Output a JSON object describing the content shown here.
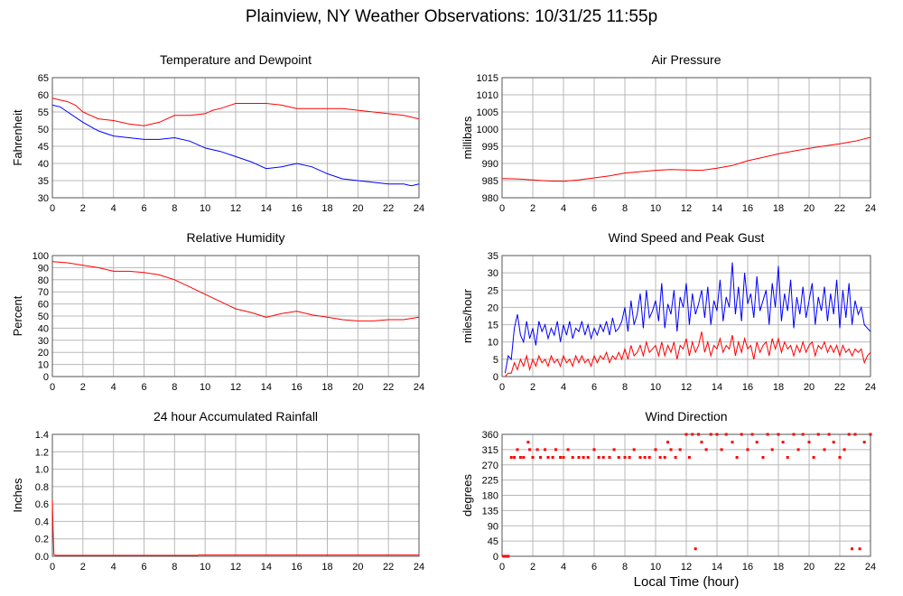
{
  "title": "Plainview, NY Weather Observations: 10/31/25 11:55p",
  "shared_xlabel": "Local Time (hour)",
  "chart_data": [
    {
      "id": "temp",
      "type": "line",
      "title": "Temperature and Dewpoint",
      "ylabel": "Fahrenheit",
      "xlim": [
        0,
        24
      ],
      "ylim": [
        30,
        65
      ],
      "xticks": [
        0,
        2,
        4,
        6,
        8,
        10,
        12,
        14,
        16,
        18,
        20,
        22,
        24
      ],
      "yticks": [
        30,
        35,
        40,
        45,
        50,
        55,
        60,
        65
      ],
      "grid": true,
      "series": [
        {
          "color": "#ff0000",
          "x": [
            0,
            0.5,
            1,
            1.5,
            2,
            3,
            4,
            5,
            6,
            6.5,
            7,
            8,
            9,
            10,
            10.5,
            11,
            12,
            13,
            14,
            15,
            16,
            17,
            18,
            19,
            20,
            21,
            22,
            23,
            24
          ],
          "y": [
            59,
            58.5,
            58,
            57,
            55,
            53,
            52.5,
            51.5,
            51,
            51.5,
            52,
            54,
            54,
            54.5,
            55.5,
            56,
            57.5,
            57.5,
            57.5,
            57,
            56,
            56,
            56,
            56,
            55.5,
            55,
            54.5,
            54,
            53
          ]
        },
        {
          "color": "#0000ff",
          "x": [
            0,
            0.5,
            1,
            2,
            3,
            4,
            5,
            6,
            7,
            8,
            9,
            10,
            11,
            12,
            13,
            14,
            15,
            16,
            17,
            18,
            19,
            20,
            21,
            22,
            23,
            23.5,
            24
          ],
          "y": [
            57,
            56.5,
            55,
            52,
            49.5,
            48,
            47.5,
            47,
            47,
            47.5,
            46.5,
            44.5,
            43.5,
            42,
            40.5,
            38.5,
            39,
            40,
            39,
            37,
            35.5,
            35,
            34.5,
            34,
            34,
            33.5,
            34
          ]
        }
      ]
    },
    {
      "id": "pressure",
      "type": "line",
      "title": "Air Pressure",
      "ylabel": "millibars",
      "xlim": [
        0,
        24
      ],
      "ylim": [
        980,
        1015
      ],
      "xticks": [
        0,
        2,
        4,
        6,
        8,
        10,
        12,
        14,
        16,
        18,
        20,
        22,
        24
      ],
      "yticks": [
        980,
        985,
        990,
        995,
        1000,
        1005,
        1010,
        1015
      ],
      "grid": true,
      "series": [
        {
          "color": "#ff0000",
          "x": [
            0,
            1,
            2,
            3,
            4,
            5,
            6,
            7,
            8,
            9,
            10,
            11,
            12,
            13,
            14,
            15,
            16,
            17,
            18,
            19,
            20,
            21,
            22,
            23,
            24
          ],
          "y": [
            985.6,
            985.5,
            985.2,
            984.9,
            984.8,
            985.2,
            985.8,
            986.4,
            987.2,
            987.6,
            988.0,
            988.2,
            988.1,
            988.0,
            988.6,
            989.4,
            990.8,
            991.8,
            992.8,
            993.6,
            994.4,
            995.1,
            995.7,
            996.5,
            997.6
          ]
        }
      ]
    },
    {
      "id": "humidity",
      "type": "line",
      "title": "Relative Humidity",
      "ylabel": "Percent",
      "xlim": [
        0,
        24
      ],
      "ylim": [
        0,
        100
      ],
      "xticks": [
        0,
        2,
        4,
        6,
        8,
        10,
        12,
        14,
        16,
        18,
        20,
        22,
        24
      ],
      "yticks": [
        0,
        10,
        20,
        30,
        40,
        50,
        60,
        70,
        80,
        90,
        100
      ],
      "grid": true,
      "series": [
        {
          "color": "#ff0000",
          "x": [
            0,
            0.5,
            1,
            2,
            3,
            4,
            5,
            6,
            7,
            8,
            9,
            10,
            11,
            12,
            13,
            14,
            15,
            16,
            17,
            18,
            19,
            20,
            21,
            22,
            23,
            24
          ],
          "y": [
            95,
            94.5,
            94,
            92,
            90,
            87,
            87,
            86,
            84,
            80,
            74,
            68,
            62,
            56,
            53,
            49,
            52,
            54,
            51,
            49,
            47,
            46,
            46,
            47,
            47,
            49
          ]
        }
      ]
    },
    {
      "id": "wind",
      "type": "line",
      "title": "Wind Speed and Peak Gust",
      "ylabel": "miles/hour",
      "xlim": [
        0,
        24
      ],
      "ylim": [
        0,
        35
      ],
      "xticks": [
        0,
        2,
        4,
        6,
        8,
        10,
        12,
        14,
        16,
        18,
        20,
        22,
        24
      ],
      "yticks": [
        0,
        5,
        10,
        15,
        20,
        25,
        30,
        35
      ],
      "grid": true,
      "series": [
        {
          "color": "#0000ff",
          "x": [
            0.2,
            0.4,
            0.6,
            0.8,
            1.0,
            1.2,
            1.4,
            1.6,
            1.8,
            2.0,
            2.2,
            2.4,
            2.6,
            2.8,
            3.0,
            3.2,
            3.4,
            3.6,
            3.8,
            4.0,
            4.2,
            4.4,
            4.6,
            4.8,
            5.0,
            5.2,
            5.4,
            5.6,
            5.8,
            6.0,
            6.2,
            6.4,
            6.6,
            6.8,
            7.0,
            7.2,
            7.4,
            7.6,
            7.8,
            8.0,
            8.2,
            8.4,
            8.6,
            8.8,
            9.0,
            9.2,
            9.4,
            9.6,
            9.8,
            10.0,
            10.2,
            10.4,
            10.6,
            10.8,
            11.0,
            11.2,
            11.4,
            11.6,
            11.8,
            12.0,
            12.2,
            12.4,
            12.6,
            12.8,
            13.0,
            13.2,
            13.4,
            13.6,
            13.8,
            14.0,
            14.2,
            14.4,
            14.6,
            14.8,
            15.0,
            15.2,
            15.4,
            15.6,
            15.8,
            16.0,
            16.2,
            16.4,
            16.6,
            16.8,
            17.0,
            17.2,
            17.4,
            17.6,
            17.8,
            18.0,
            18.2,
            18.4,
            18.6,
            18.8,
            19.0,
            19.2,
            19.4,
            19.6,
            19.8,
            20.0,
            20.2,
            20.4,
            20.6,
            20.8,
            21.0,
            21.2,
            21.4,
            21.6,
            21.8,
            22.0,
            22.2,
            22.4,
            22.6,
            22.8,
            23.0,
            23.2,
            23.4,
            23.6,
            23.8,
            24.0
          ],
          "y": [
            1,
            6,
            5,
            14,
            18,
            12,
            10,
            16,
            11,
            14,
            9,
            16,
            13,
            15,
            11,
            14,
            12,
            16,
            10,
            15,
            12,
            16,
            11,
            14,
            13,
            16,
            12,
            15,
            11,
            14,
            12,
            15,
            13,
            16,
            12,
            17,
            13,
            14,
            16,
            20,
            13,
            22,
            15,
            18,
            24,
            14,
            25,
            17,
            19,
            22,
            16,
            27,
            14,
            21,
            18,
            25,
            13,
            23,
            20,
            27,
            15,
            24,
            18,
            21,
            25,
            17,
            26,
            15,
            22,
            19,
            28,
            16,
            23,
            20,
            33,
            18,
            26,
            16,
            30,
            21,
            24,
            17,
            29,
            19,
            22,
            25,
            15,
            27,
            20,
            32,
            16,
            24,
            19,
            28,
            14,
            23,
            18,
            26,
            17,
            22,
            27,
            15,
            23,
            19,
            26,
            16,
            24,
            18,
            28,
            14,
            25,
            17,
            27,
            15,
            22,
            18,
            20,
            15,
            14,
            13
          ]
        },
        {
          "color": "#ff0000",
          "x": [
            0.2,
            0.4,
            0.6,
            0.8,
            1.0,
            1.2,
            1.4,
            1.6,
            1.8,
            2.0,
            2.2,
            2.4,
            2.6,
            2.8,
            3.0,
            3.2,
            3.4,
            3.6,
            3.8,
            4.0,
            4.2,
            4.4,
            4.6,
            4.8,
            5.0,
            5.2,
            5.4,
            5.6,
            5.8,
            6.0,
            6.2,
            6.4,
            6.6,
            6.8,
            7.0,
            7.2,
            7.4,
            7.6,
            7.8,
            8.0,
            8.2,
            8.4,
            8.6,
            8.8,
            9.0,
            9.2,
            9.4,
            9.6,
            9.8,
            10.0,
            10.2,
            10.4,
            10.6,
            10.8,
            11.0,
            11.2,
            11.4,
            11.6,
            11.8,
            12.0,
            12.2,
            12.4,
            12.6,
            12.8,
            13.0,
            13.2,
            13.4,
            13.6,
            13.8,
            14.0,
            14.2,
            14.4,
            14.6,
            14.8,
            15.0,
            15.2,
            15.4,
            15.6,
            15.8,
            16.0,
            16.2,
            16.4,
            16.6,
            16.8,
            17.0,
            17.2,
            17.4,
            17.6,
            17.8,
            18.0,
            18.2,
            18.4,
            18.6,
            18.8,
            19.0,
            19.2,
            19.4,
            19.6,
            19.8,
            20.0,
            20.2,
            20.4,
            20.6,
            20.8,
            21.0,
            21.2,
            21.4,
            21.6,
            21.8,
            22.0,
            22.2,
            22.4,
            22.6,
            22.8,
            23.0,
            23.2,
            23.4,
            23.6,
            23.8,
            24.0
          ],
          "y": [
            0,
            1,
            1,
            4,
            2,
            5,
            3,
            6,
            2,
            5,
            3,
            6,
            4,
            5,
            3,
            6,
            4,
            5,
            3,
            6,
            4,
            5,
            3,
            6,
            4,
            6,
            4,
            5,
            3,
            6,
            4,
            6,
            5,
            7,
            4,
            6,
            5,
            7,
            5,
            8,
            5,
            9,
            6,
            7,
            9,
            6,
            10,
            7,
            8,
            9,
            6,
            10,
            6,
            9,
            7,
            10,
            5,
            9,
            8,
            11,
            6,
            10,
            7,
            9,
            13,
            7,
            10,
            6,
            9,
            8,
            11,
            7,
            9,
            8,
            12,
            6,
            10,
            7,
            11,
            8,
            9,
            5,
            10,
            7,
            9,
            10,
            6,
            11,
            8,
            11,
            7,
            10,
            8,
            9,
            6,
            9,
            7,
            10,
            7,
            9,
            10,
            6,
            9,
            8,
            10,
            7,
            9,
            7,
            9,
            6,
            9,
            7,
            8,
            6,
            8,
            7,
            8,
            4,
            6,
            7
          ]
        }
      ]
    },
    {
      "id": "rain",
      "type": "line",
      "title": "24 hour Accumulated Rainfall",
      "ylabel": "Inches",
      "xlim": [
        0,
        24
      ],
      "ylim": [
        0,
        1.4
      ],
      "xticks": [
        0,
        2,
        4,
        6,
        8,
        10,
        12,
        14,
        16,
        18,
        20,
        22,
        24
      ],
      "yticks": [
        "0.0",
        "0.2",
        "0.4",
        "0.6",
        "0.8",
        "1.0",
        "1.2",
        "1.4"
      ],
      "grid": true,
      "series": [
        {
          "color": "#ff0000",
          "x": [
            0,
            0.05,
            0.1,
            0.2,
            2,
            6,
            9.5,
            9.6,
            12,
            16,
            20,
            24
          ],
          "y": [
            0.65,
            0.3,
            0.02,
            0.01,
            0.01,
            0.01,
            0.01,
            0.015,
            0.015,
            0.015,
            0.015,
            0.015
          ]
        }
      ]
    },
    {
      "id": "direction",
      "type": "scatter",
      "title": "Wind Direction",
      "ylabel": "degrees",
      "xlim": [
        0,
        24
      ],
      "ylim": [
        0,
        360
      ],
      "xticks": [
        0,
        2,
        4,
        6,
        8,
        10,
        12,
        14,
        16,
        18,
        20,
        22,
        24
      ],
      "yticks": [
        0,
        45,
        90,
        135,
        180,
        225,
        270,
        315,
        360
      ],
      "grid": true,
      "series": [
        {
          "color": "#ff0000",
          "x": [
            0.1,
            0.2,
            0.3,
            0.4,
            0.6,
            0.8,
            1.0,
            1.2,
            1.4,
            1.7,
            1.8,
            2.0,
            2.3,
            2.5,
            2.8,
            3.0,
            3.3,
            3.5,
            3.8,
            4.0,
            4.3,
            4.6,
            5.0,
            5.3,
            5.6,
            6.0,
            6.3,
            6.6,
            7.0,
            7.3,
            7.6,
            8.0,
            8.3,
            8.6,
            9.0,
            9.3,
            9.6,
            10.0,
            10.3,
            10.6,
            10.8,
            11.0,
            11.3,
            11.6,
            12.0,
            12.2,
            12.4,
            12.6,
            12.8,
            13.0,
            13.3,
            13.6,
            14.0,
            14.3,
            14.6,
            15.0,
            15.3,
            15.6,
            16.0,
            16.3,
            16.6,
            17.0,
            17.3,
            17.6,
            18.0,
            18.3,
            18.6,
            19.0,
            19.3,
            19.6,
            20.0,
            20.3,
            20.6,
            21.0,
            21.3,
            21.6,
            22.0,
            22.3,
            22.6,
            22.8,
            23.0,
            23.3,
            23.6,
            24.0
          ],
          "y": [
            0,
            0,
            0,
            0,
            292,
            292,
            315,
            292,
            292,
            337,
            315,
            292,
            315,
            292,
            315,
            292,
            292,
            315,
            292,
            292,
            315,
            292,
            292,
            292,
            292,
            315,
            292,
            292,
            292,
            315,
            292,
            292,
            292,
            315,
            292,
            292,
            292,
            315,
            292,
            292,
            337,
            315,
            292,
            315,
            360,
            292,
            360,
            22,
            360,
            337,
            315,
            360,
            360,
            315,
            360,
            337,
            292,
            360,
            315,
            360,
            337,
            292,
            360,
            315,
            360,
            337,
            292,
            360,
            315,
            360,
            337,
            292,
            360,
            315,
            360,
            337,
            292,
            315,
            360,
            22,
            360,
            22,
            337,
            360
          ]
        }
      ]
    }
  ]
}
